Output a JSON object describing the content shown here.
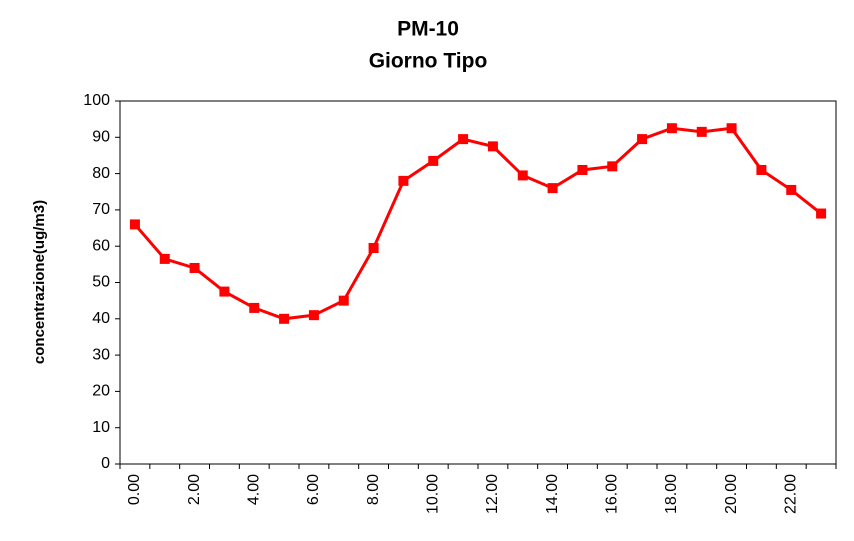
{
  "chart_data": {
    "type": "line",
    "title": "PM-10",
    "subtitle": "Giorno Tipo",
    "y_label": "concentrazione(ug/m3)",
    "categories": [
      "0.00",
      null,
      "2.00",
      null,
      "4.00",
      null,
      "6.00",
      null,
      "8.00",
      null,
      "10.00",
      null,
      "12.00",
      null,
      "14.00",
      null,
      "16.00",
      null,
      "18.00",
      null,
      "20.00",
      null,
      "22.00",
      null
    ],
    "series": [
      {
        "name": "PM-10",
        "color": "#ff0000",
        "values": [
          66,
          56.5,
          54,
          47.5,
          43,
          40,
          41,
          45,
          59.5,
          78,
          83.5,
          89.5,
          87.5,
          79.5,
          76,
          81,
          82,
          89.5,
          92.5,
          91.5,
          92.5,
          81,
          75.5,
          69
        ]
      }
    ],
    "ylim": [
      0,
      100
    ],
    "yticks": [
      0,
      10,
      20,
      30,
      40,
      50,
      60,
      70,
      80,
      90,
      100
    ],
    "grid": false
  }
}
